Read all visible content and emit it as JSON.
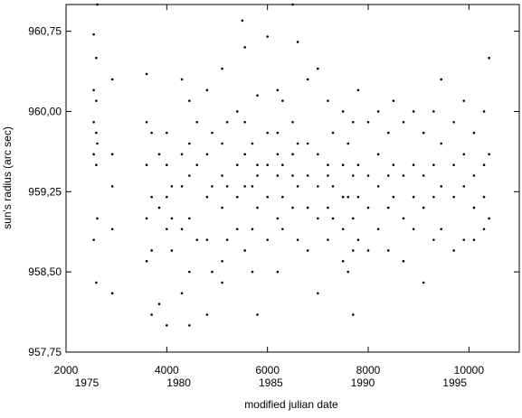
{
  "chart_data": {
    "type": "scatter",
    "xlabel": "modified julian date",
    "ylabel": "sun's radius (arc sec)",
    "color": "#000000",
    "xlim": [
      2000,
      11000
    ],
    "ylim": [
      957.75,
      961.0
    ],
    "xticks": [
      2000,
      4000,
      6000,
      8000,
      10000
    ],
    "x2ticks": [
      {
        "value": 2413,
        "label": "1975"
      },
      {
        "value": 4239,
        "label": "1980"
      },
      {
        "value": 6066,
        "label": "1985"
      },
      {
        "value": 7892,
        "label": "1990"
      },
      {
        "value": 9718,
        "label": "1995"
      }
    ],
    "yticks": [
      {
        "value": 957.75,
        "label": "957,75"
      },
      {
        "value": 958.5,
        "label": "958,50"
      },
      {
        "value": 959.25,
        "label": "959,25"
      },
      {
        "value": 960.0,
        "label": "960,00"
      },
      {
        "value": 960.75,
        "label": "960,75"
      }
    ],
    "x": [
      2550,
      2550,
      2550,
      2550,
      2550,
      2600,
      2600,
      2600,
      2600,
      2600,
      2620,
      2620,
      2620,
      2920,
      2920,
      2920,
      2920,
      2920,
      3600,
      3600,
      3600,
      3600,
      3600,
      3700,
      3700,
      3700,
      3700,
      3850,
      3850,
      3850,
      4000,
      4000,
      4000,
      4000,
      4000,
      4100,
      4100,
      4100,
      4300,
      4300,
      4300,
      4300,
      4300,
      4450,
      4450,
      4450,
      4450,
      4450,
      4450,
      4600,
      4600,
      4600,
      4800,
      4800,
      4800,
      4800,
      4800,
      4900,
      4900,
      4900,
      5100,
      5100,
      5100,
      5100,
      5100,
      5100,
      5200,
      5200,
      5200,
      5400,
      5400,
      5400,
      5400,
      5500,
      5550,
      5550,
      5550,
      5550,
      5550,
      5700,
      5700,
      5700,
      5700,
      5800,
      5800,
      5800,
      5800,
      5800,
      6000,
      6000,
      6000,
      6000,
      6000,
      6200,
      6200,
      6200,
      6200,
      6200,
      6200,
      6300,
      6300,
      6300,
      6300,
      6500,
      6500,
      6500,
      6500,
      6500,
      6600,
      6600,
      6600,
      6600,
      6800,
      6800,
      6800,
      6800,
      6800,
      7000,
      7000,
      7000,
      7000,
      7000,
      7200,
      7200,
      7200,
      7200,
      7200,
      7300,
      7300,
      7300,
      7500,
      7500,
      7500,
      7500,
      7500,
      7600,
      7600,
      7600,
      7700,
      7700,
      7700,
      7700,
      7700,
      7800,
      7800,
      7800,
      7800,
      8000,
      8000,
      8000,
      8000,
      8200,
      8200,
      8200,
      8200,
      8400,
      8400,
      8400,
      8400,
      8500,
      8500,
      8500,
      8700,
      8700,
      8700,
      8700,
      8900,
      8900,
      8900,
      8900,
      9100,
      9100,
      9100,
      9100,
      9300,
      9300,
      9300,
      9300,
      9450,
      9450,
      9450,
      9450,
      9700,
      9700,
      9700,
      9700,
      9900,
      9900,
      9900,
      9900,
      10100,
      10100,
      10100,
      10100,
      10300,
      10300,
      10300,
      10300,
      10400,
      10400,
      10400
    ],
    "values": [
      960.72,
      960.2,
      959.9,
      959.6,
      958.8,
      960.5,
      960.1,
      959.8,
      959.5,
      958.4,
      961.0,
      959.7,
      959.0,
      960.3,
      959.6,
      959.3,
      958.9,
      958.3,
      960.35,
      959.9,
      959.5,
      959.0,
      958.6,
      959.8,
      959.2,
      958.7,
      958.1,
      959.6,
      959.1,
      958.2,
      959.5,
      959.2,
      958.9,
      958.0,
      959.8,
      959.3,
      959.0,
      958.7,
      960.3,
      959.6,
      959.3,
      958.9,
      958.3,
      960.1,
      959.7,
      959.4,
      959.0,
      958.5,
      958.0,
      959.9,
      959.5,
      958.8,
      960.2,
      959.6,
      959.2,
      958.8,
      958.1,
      959.8,
      959.3,
      958.5,
      960.4,
      959.7,
      959.4,
      959.1,
      958.6,
      958.4,
      959.9,
      959.3,
      958.8,
      960.0,
      959.5,
      959.2,
      958.9,
      960.85,
      960.6,
      959.9,
      959.6,
      959.3,
      958.7,
      959.7,
      959.3,
      958.9,
      958.5,
      960.15,
      959.5,
      959.4,
      959.1,
      958.1,
      960.7,
      959.8,
      959.5,
      959.2,
      958.8,
      960.2,
      959.8,
      959.6,
      959.4,
      959.0,
      958.5,
      960.1,
      959.5,
      959.2,
      958.9,
      961.0,
      959.9,
      959.6,
      959.4,
      959.1,
      960.65,
      959.7,
      959.3,
      958.8,
      960.3,
      959.7,
      959.4,
      959.1,
      958.7,
      960.4,
      959.6,
      959.3,
      959.0,
      958.3,
      960.1,
      959.5,
      959.4,
      959.1,
      958.8,
      959.8,
      959.3,
      959.0,
      960.0,
      959.5,
      959.2,
      958.9,
      958.6,
      959.7,
      959.2,
      958.5,
      959.9,
      959.4,
      959.0,
      958.7,
      958.1,
      960.2,
      959.5,
      959.2,
      958.8,
      959.9,
      959.4,
      959.1,
      958.7,
      960.0,
      959.6,
      959.3,
      958.9,
      959.8,
      959.4,
      959.1,
      958.7,
      960.1,
      959.5,
      959.2,
      959.9,
      959.4,
      959.0,
      958.6,
      960.0,
      959.5,
      959.2,
      958.9,
      959.8,
      959.4,
      959.1,
      958.4,
      960.0,
      959.5,
      959.2,
      958.8,
      960.3,
      959.7,
      959.3,
      958.9,
      959.9,
      959.5,
      959.2,
      958.7,
      960.1,
      959.6,
      959.3,
      958.8,
      959.8,
      959.4,
      959.1,
      958.8,
      960.0,
      959.5,
      959.2,
      958.9,
      960.5,
      959.6,
      959.0
    ]
  }
}
